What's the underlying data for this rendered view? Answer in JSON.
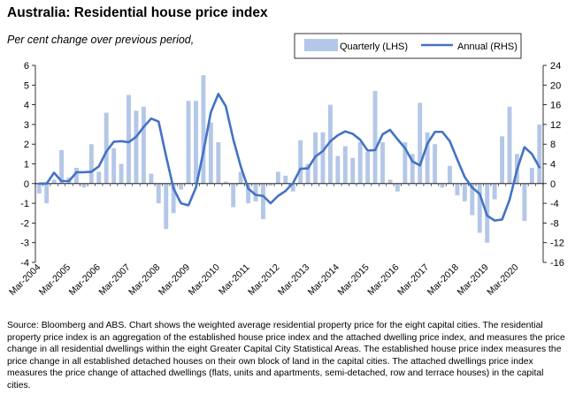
{
  "chart_data": {
    "type": "bar+line",
    "title": "Australia: Residential house price index",
    "subtitle": "Per cent change over previous period,",
    "x_tick_labels": [
      "Mar-2004",
      "Mar-2005",
      "Mar-2006",
      "Mar-2007",
      "Mar-2008",
      "Mar-2009",
      "Mar-2010",
      "Mar-2011",
      "Mar-2012",
      "Mar-2013",
      "Mar-2014",
      "Mar-2015",
      "Mar-2016",
      "Mar-2017",
      "Mar-2018",
      "Mar-2019",
      "Mar-2020"
    ],
    "x_start": "Mar-2004",
    "frequency": "quarterly",
    "y_left": {
      "min": -4,
      "max": 6,
      "step": 1,
      "ticks": [
        "-4",
        "-3",
        "-2",
        "-1",
        "0",
        "1",
        "2",
        "3",
        "4",
        "5",
        "6"
      ]
    },
    "y_right": {
      "min": -16,
      "max": 24,
      "step": 4,
      "ticks": [
        "-16",
        "-12",
        "-8",
        "-4",
        "0",
        "4",
        "8",
        "12",
        "16",
        "20",
        "24"
      ]
    },
    "gridlines": false,
    "legend_position": "top-right",
    "series": [
      {
        "name": "Quarterly (LHS)",
        "kind": "bar",
        "axis": "left",
        "color": "#b4c7e7",
        "values": [
          -0.5,
          -1.0,
          0.2,
          1.7,
          0.3,
          0.8,
          -0.2,
          2.0,
          0.6,
          3.6,
          1.8,
          1.0,
          4.5,
          3.7,
          3.9,
          0.5,
          -1.0,
          -2.3,
          -1.5,
          -0.3,
          4.2,
          4.2,
          5.5,
          3.1,
          2.1,
          0.1,
          -1.2,
          0.6,
          -1.0,
          -0.9,
          -1.8,
          -0.1,
          0.6,
          0.4,
          -0.4,
          2.2,
          1.0,
          2.6,
          2.6,
          4.0,
          1.4,
          1.9,
          1.3,
          2.1,
          1.6,
          4.7,
          2.1,
          0.2,
          -0.4,
          2.1,
          1.5,
          4.1,
          2.6,
          2.0,
          -0.2,
          0.9,
          -0.6,
          -0.9,
          -1.6,
          -2.5,
          -3.0,
          -0.8,
          2.4,
          3.9,
          1.5,
          -1.9,
          0.8,
          3.0
        ]
      },
      {
        "name": "Annual (RHS)",
        "kind": "line",
        "axis": "right",
        "color": "#4472c4",
        "values": [
          0,
          0,
          2.2,
          0.5,
          0.5,
          2.3,
          2.3,
          2.4,
          3.5,
          6.5,
          8.5,
          8.6,
          8.4,
          9.5,
          11.5,
          13.2,
          12.6,
          5.6,
          -1.0,
          -4.0,
          -4.4,
          -0.8,
          6.5,
          14.5,
          18.2,
          15.7,
          9.0,
          3.5,
          -1.0,
          -2.3,
          -2.5,
          -4.0,
          -2.5,
          -1.5,
          0.1,
          3.0,
          3.1,
          5.5,
          6.6,
          8.6,
          9.8,
          10.6,
          10.1,
          8.9,
          6.7,
          6.8,
          10.0,
          10.9,
          9.0,
          7.2,
          4.5,
          3.7,
          8.1,
          10.5,
          10.5,
          8.6,
          4.9,
          1.3,
          -0.8,
          -2.1,
          -6.5,
          -7.5,
          -7.3,
          -3.3,
          2.8,
          7.4,
          6.0,
          3.3
        ]
      }
    ]
  },
  "source_note": "Source: Bloomberg and ABS. Chart shows the weighted average residential property price for the eight capital cities.  The residential property price index is an aggregation of the established house price index and the attached dwelling price index, and measures the price change in all residential dwellings within the eight Greater Capital City Statistical Areas.  The established house price index measures the price change in all established detached houses on their own block of land in the capital cities. The attached dwellings price index measures the price change of attached dwellings (flats, units and apartments, semi-detached, row and terrace houses) in the capital cities."
}
